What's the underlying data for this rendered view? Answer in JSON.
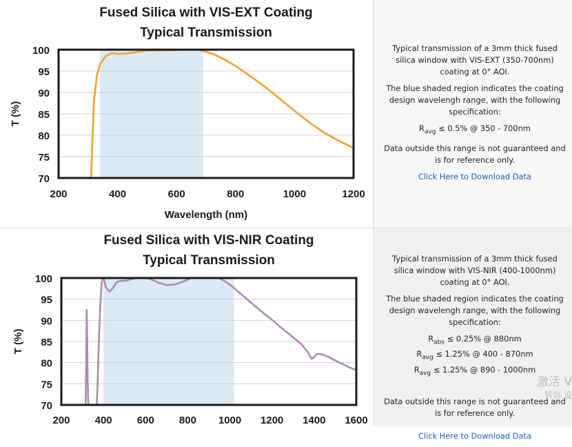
{
  "chart_data": [
    {
      "type": "line",
      "title": "Fused Silica with VIS-EXT Coating",
      "subtitle": "Typical Transmission",
      "xlabel": "Wavelength (nm)",
      "ylabel": "T (%)",
      "xlim": [
        200,
        1200
      ],
      "ylim": [
        70,
        100
      ],
      "x_ticks": [
        200,
        400,
        600,
        800,
        1000,
        1200
      ],
      "y_ticks": [
        70,
        75,
        80,
        85,
        90,
        95,
        100
      ],
      "grid": true,
      "shaded_region": [
        340,
        690
      ],
      "series": [
        {
          "color": "#f0a030",
          "x": [
            310,
            315,
            320,
            330,
            340,
            350,
            360,
            380,
            400,
            430,
            460,
            500,
            550,
            600,
            650,
            680,
            700,
            730,
            760,
            800,
            850,
            900,
            950,
            1000,
            1050,
            1100,
            1150,
            1200
          ],
          "y": [
            70,
            79,
            88,
            94,
            96.5,
            97.6,
            98.5,
            99.2,
            99.0,
            99.1,
            99.4,
            99.8,
            99.8,
            99.9,
            100.0,
            99.9,
            99.5,
            98.8,
            97.8,
            96.2,
            93.8,
            91.3,
            88.5,
            85.7,
            83.0,
            80.6,
            78.7,
            77.0
          ]
        }
      ]
    },
    {
      "type": "line",
      "title": "Fused Silica with VIS-NIR Coating",
      "subtitle": "Typical Transmission",
      "xlabel": "",
      "ylabel": "T (%)",
      "xlim": [
        200,
        1600
      ],
      "ylim": [
        70,
        100
      ],
      "x_ticks": [
        200,
        400,
        600,
        800,
        1000,
        1200,
        1400,
        1600
      ],
      "y_ticks": [
        70,
        75,
        80,
        85,
        90,
        95,
        100
      ],
      "grid": true,
      "shaded_region": [
        400,
        1020
      ],
      "series": [
        {
          "color": "#a98bb0",
          "x": [
            315,
            318,
            320,
            322,
            325,
            328,
            332,
            345,
            360,
            368,
            372,
            378,
            385,
            392,
            398,
            403,
            410,
            420,
            430,
            445,
            460,
            480,
            510,
            540,
            580,
            620,
            660,
            700,
            740,
            780,
            820,
            860,
            900,
            940,
            980,
            1000,
            1020,
            1060,
            1100,
            1150,
            1200,
            1250,
            1300,
            1340,
            1370,
            1380,
            1390,
            1400,
            1410,
            1420,
            1440,
            1470,
            1500,
            1540,
            1570,
            1600
          ],
          "y": [
            70,
            80,
            92.5,
            88,
            76,
            70,
            70,
            70,
            70,
            70,
            75,
            85,
            94,
            99,
            100.3,
            99.5,
            98,
            97.2,
            96.8,
            97.6,
            98.9,
            99.3,
            99.4,
            99.8,
            100.3,
            99.8,
            98.9,
            98.3,
            98.5,
            99.2,
            100.1,
            100.6,
            100.7,
            100.2,
            99.1,
            98.4,
            97.6,
            95.9,
            94.2,
            92.1,
            90.1,
            88.0,
            86.0,
            84.3,
            82.5,
            81.5,
            80.9,
            81.3,
            81.9,
            82.1,
            81.9,
            81.3,
            80.5,
            79.5,
            78.8,
            78.2
          ]
        }
      ]
    }
  ],
  "panels": [
    {
      "desc_lines": [
        "Typical transmission of a 3mm thick fused silica window with VIS-EXT (350-700nm) coating at 0° AOI."
      ],
      "shade_note": "The blue shaded region indicates the coating design wavelengh range, with the following specification:",
      "specs": [
        {
          "sym": "R",
          "sub": "avg",
          "rest": " ≤ 0.5% @ 350 - 700nm"
        }
      ],
      "disclaimer": "Data outside this range is not guaranteed and is for reference only.",
      "link": "Click Here to Download Data"
    },
    {
      "desc_lines": [
        "Typical transmission of a 3mm thick fused silica window with VIS-NIR (400-1000nm) coating at 0° AOI."
      ],
      "shade_note": "The blue shaded region indicates the coating design wavelengh range, with the following specification:",
      "specs": [
        {
          "sym": "R",
          "sub": "abs",
          "rest": " ≤ 0.25% @ 880nm"
        },
        {
          "sym": "R",
          "sub": "avg",
          "rest": " ≤ 1.25% @ 400 - 870nm"
        },
        {
          "sym": "R",
          "sub": "avg",
          "rest": " ≤ 1.25% @ 890 - 1000nm"
        }
      ],
      "disclaimer": "Data outside this range is not guaranteed and is for reference only.",
      "link": "Click Here to Download Data"
    }
  ],
  "watermark": {
    "line1": "激活 V",
    "line2": "转到 设"
  },
  "colors": {
    "shade": "#dceaf6",
    "grid": "#cfcfcf",
    "frame": "#1a1a1a",
    "link": "#1f5fae"
  }
}
